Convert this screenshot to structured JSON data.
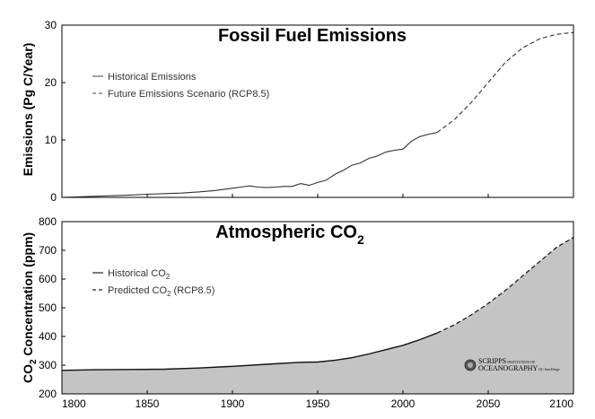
{
  "chart_data": [
    {
      "type": "line",
      "title": "Fossil Fuel Emissions",
      "ylabel": "Emissions (Pg C/Year)",
      "xlabel": "",
      "xlim": [
        1800,
        2100
      ],
      "ylim": [
        0,
        30
      ],
      "yticks": [
        0,
        10,
        20,
        30
      ],
      "grid": false,
      "legend_position": "top-left",
      "series": [
        {
          "name": "Historical Emissions",
          "style": "solid",
          "x": [
            1800,
            1810,
            1820,
            1830,
            1840,
            1850,
            1860,
            1870,
            1880,
            1890,
            1900,
            1905,
            1910,
            1915,
            1920,
            1925,
            1930,
            1935,
            1940,
            1945,
            1950,
            1955,
            1960,
            1965,
            1970,
            1975,
            1980,
            1985,
            1990,
            1995,
            2000,
            2005,
            2010,
            2015,
            2020
          ],
          "values": [
            0.0,
            0.1,
            0.2,
            0.3,
            0.4,
            0.55,
            0.65,
            0.75,
            0.95,
            1.2,
            1.6,
            1.8,
            2.0,
            1.8,
            1.7,
            1.8,
            1.9,
            1.9,
            2.4,
            2.1,
            2.6,
            3.0,
            4.0,
            4.7,
            5.6,
            6.0,
            6.8,
            7.2,
            7.9,
            8.2,
            8.4,
            9.8,
            10.6,
            11.0,
            11.3
          ]
        },
        {
          "name": "Future Emissions Scenario (RCP8.5)",
          "style": "dashed",
          "x": [
            2020,
            2030,
            2040,
            2050,
            2060,
            2070,
            2080,
            2090,
            2100
          ],
          "values": [
            11.3,
            13.5,
            16.5,
            20.0,
            23.5,
            26.0,
            27.6,
            28.4,
            28.7
          ]
        }
      ]
    },
    {
      "type": "area",
      "title": "Atmospheric CO",
      "title_subscript": "2",
      "ylabel": "CO",
      "ylabel_subscript": "2",
      "ylabel_suffix": " Concentration (ppm)",
      "xlabel": "",
      "xlim": [
        1800,
        2100
      ],
      "ylim": [
        200,
        800
      ],
      "xticks": [
        1800,
        1850,
        1900,
        1950,
        2000,
        2050,
        2100
      ],
      "yticks": [
        200,
        300,
        400,
        500,
        600,
        700,
        800
      ],
      "grid": false,
      "legend_position": "top-left",
      "series": [
        {
          "name": "Historical CO",
          "name_subscript": "2",
          "style": "solid",
          "x": [
            1800,
            1820,
            1840,
            1860,
            1880,
            1900,
            1920,
            1940,
            1950,
            1960,
            1970,
            1980,
            1990,
            2000,
            2010,
            2020
          ],
          "values": [
            282,
            284,
            285,
            286,
            290,
            296,
            303,
            310,
            311,
            317,
            326,
            339,
            354,
            369,
            389,
            412
          ]
        },
        {
          "name": "Predicted CO",
          "name_subscript": "2",
          "name_suffix": " (RCP8.5)",
          "style": "dashed",
          "x": [
            2020,
            2030,
            2040,
            2050,
            2060,
            2070,
            2080,
            2090,
            2100
          ],
          "values": [
            412,
            440,
            475,
            515,
            560,
            610,
            660,
            710,
            745
          ]
        }
      ]
    }
  ],
  "logo": {
    "line1": "SCRIPPS",
    "line1_small": "INSTITUTION OF",
    "line2": "OCEANOGRAPHY",
    "line2_small": "UC San Diego"
  }
}
